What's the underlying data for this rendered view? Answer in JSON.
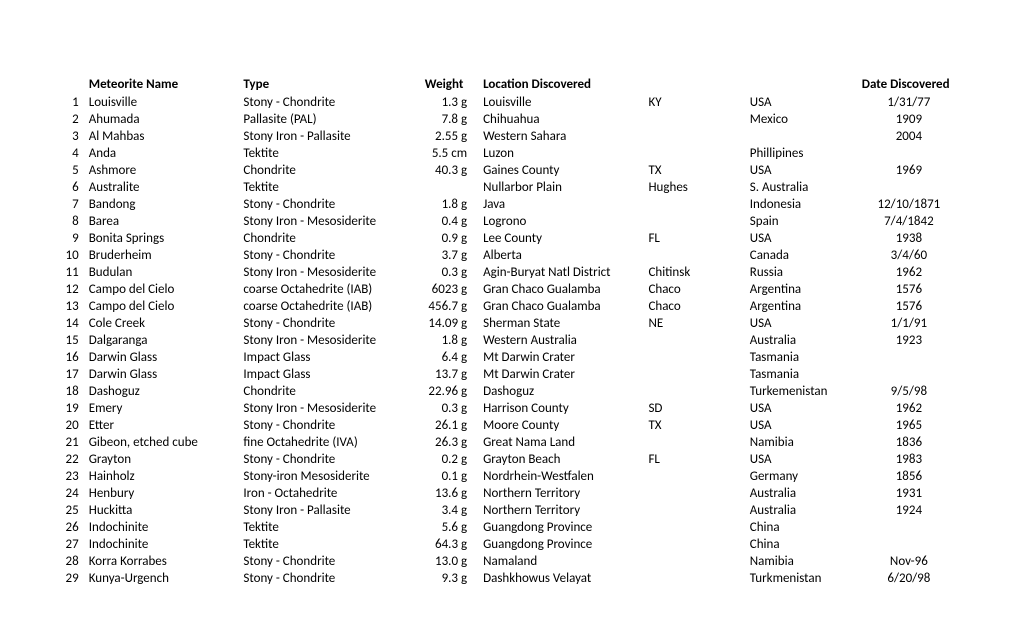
{
  "headers": {
    "name": "Meteorite Name",
    "type": "Type",
    "weight": "Weight",
    "location": "Location Discovered",
    "date": "Date Discovered"
  },
  "rows": [
    {
      "num": "1",
      "name": "Louisville",
      "type": "Stony - Chondrite",
      "weight": "1.3 g",
      "loc1": "Louisville",
      "loc2": "KY",
      "loc3": "USA",
      "date": "1/31/77"
    },
    {
      "num": "2",
      "name": "Ahumada",
      "type": "Pallasite (PAL)",
      "weight": "7.8 g",
      "loc1": "Chihuahua",
      "loc2": "",
      "loc3": "Mexico",
      "date": "1909"
    },
    {
      "num": "3",
      "name": "Al Mahbas",
      "type": "Stony Iron - Pallasite",
      "weight": "2.55 g",
      "loc1": "Western Sahara",
      "loc2": "",
      "loc3": "",
      "date": "2004"
    },
    {
      "num": "4",
      "name": "Anda",
      "type": "Tektite",
      "weight": "5.5 cm",
      "loc1": "Luzon",
      "loc2": "",
      "loc3": "Phillipines",
      "date": ""
    },
    {
      "num": "5",
      "name": "Ashmore",
      "type": "Chondrite",
      "weight": "40.3 g",
      "loc1": "Gaines County",
      "loc2": "TX",
      "loc3": "USA",
      "date": "1969"
    },
    {
      "num": "6",
      "name": "Australite",
      "type": "Tektite",
      "weight": "",
      "loc1": "Nullarbor Plain",
      "loc2": "Hughes",
      "loc3": "S. Australia",
      "date": ""
    },
    {
      "num": "7",
      "name": "Bandong",
      "type": "Stony - Chondrite",
      "weight": "1.8 g",
      "loc1": "Java",
      "loc2": "",
      "loc3": "Indonesia",
      "date": "12/10/1871"
    },
    {
      "num": "8",
      "name": "Barea",
      "type": "Stony Iron - Mesosiderite",
      "weight": "0.4 g",
      "loc1": "Logrono",
      "loc2": "",
      "loc3": "Spain",
      "date": "7/4/1842"
    },
    {
      "num": "9",
      "name": "Bonita Springs",
      "type": "Chondrite",
      "weight": "0.9 g",
      "loc1": "Lee County",
      "loc2": "FL",
      "loc3": "USA",
      "date": "1938"
    },
    {
      "num": "10",
      "name": "Bruderheim",
      "type": "Stony - Chondrite",
      "weight": "3.7 g",
      "loc1": "Alberta",
      "loc2": "",
      "loc3": "Canada",
      "date": "3/4/60"
    },
    {
      "num": "11",
      "name": "Budulan",
      "type": "Stony Iron - Mesosiderite",
      "weight": "0.3 g",
      "loc1": "Agin-Buryat Natl District",
      "loc2": "Chitinsk",
      "loc3": "Russia",
      "date": "1962"
    },
    {
      "num": "12",
      "name": "Campo del Cielo",
      "type": "coarse Octahedrite (IAB)",
      "weight": "6023 g",
      "loc1": "Gran Chaco Gualamba",
      "loc2": "Chaco",
      "loc3": "Argentina",
      "date": "1576"
    },
    {
      "num": "13",
      "name": "Campo del Cielo",
      "type": "coarse Octahedrite (IAB)",
      "weight": "456.7 g",
      "loc1": "Gran Chaco Gualamba",
      "loc2": "Chaco",
      "loc3": "Argentina",
      "date": "1576"
    },
    {
      "num": "14",
      "name": "Cole Creek",
      "type": "Stony - Chondrite",
      "weight": "14.09 g",
      "loc1": "Sherman State",
      "loc2": "NE",
      "loc3": "USA",
      "date": "1/1/91"
    },
    {
      "num": "15",
      "name": "Dalgaranga",
      "type": "Stony Iron - Mesosiderite",
      "weight": "1.8 g",
      "loc1": "Western Australia",
      "loc2": "",
      "loc3": "Australia",
      "date": "1923"
    },
    {
      "num": "16",
      "name": "Darwin Glass",
      "type": "Impact Glass",
      "weight": "6.4 g",
      "loc1": "Mt Darwin Crater",
      "loc2": "",
      "loc3": "Tasmania",
      "date": ""
    },
    {
      "num": "17",
      "name": "Darwin Glass",
      "type": "Impact Glass",
      "weight": "13.7 g",
      "loc1": "Mt Darwin Crater",
      "loc2": "",
      "loc3": "Tasmania",
      "date": ""
    },
    {
      "num": "18",
      "name": "Dashoguz",
      "type": "Chondrite",
      "weight": "22.96 g",
      "loc1": "Dashoguz",
      "loc2": "",
      "loc3": "Turkemenistan",
      "date": "9/5/98"
    },
    {
      "num": "19",
      "name": "Emery",
      "type": "Stony Iron - Mesosiderite",
      "weight": "0.3 g",
      "loc1": "Harrison County",
      "loc2": "SD",
      "loc3": "USA",
      "date": "1962"
    },
    {
      "num": "20",
      "name": "Etter",
      "type": "Stony - Chondrite",
      "weight": "26.1 g",
      "loc1": "Moore County",
      "loc2": "TX",
      "loc3": "USA",
      "date": "1965"
    },
    {
      "num": "21",
      "name": "Gibeon, etched cube",
      "type": "fine Octahedrite (IVA)",
      "weight": "26.3 g",
      "loc1": "Great Nama Land",
      "loc2": "",
      "loc3": "Namibia",
      "date": "1836"
    },
    {
      "num": "22",
      "name": "Grayton",
      "type": "Stony - Chondrite",
      "weight": "0.2 g",
      "loc1": "Grayton Beach",
      "loc2": "FL",
      "loc3": "USA",
      "date": "1983"
    },
    {
      "num": "23",
      "name": "Hainholz",
      "type": "Stony-iron Mesosiderite",
      "weight": "0.1 g",
      "loc1": "Nordrhein-Westfalen",
      "loc2": "",
      "loc3": "Germany",
      "date": "1856"
    },
    {
      "num": "24",
      "name": "Henbury",
      "type": "Iron - Octahedrite",
      "weight": "13.6 g",
      "loc1": "Northern Territory",
      "loc2": "",
      "loc3": "Australia",
      "date": "1931"
    },
    {
      "num": "25",
      "name": "Huckitta",
      "type": "Stony Iron - Pallasite",
      "weight": "3.4 g",
      "loc1": "Northern Territory",
      "loc2": "",
      "loc3": "Australia",
      "date": "1924"
    },
    {
      "num": "26",
      "name": "Indochinite",
      "type": "Tektite",
      "weight": "5.6 g",
      "loc1": "Guangdong Province",
      "loc2": "",
      "loc3": "China",
      "date": ""
    },
    {
      "num": "27",
      "name": "Indochinite",
      "type": "Tektite",
      "weight": "64.3 g",
      "loc1": "Guangdong Province",
      "loc2": "",
      "loc3": "China",
      "date": ""
    },
    {
      "num": "28",
      "name": "Korra Korrabes",
      "type": "Stony - Chondrite",
      "weight": "13.0 g",
      "loc1": "Namaland",
      "loc2": "",
      "loc3": "Namibia",
      "date": "Nov-96"
    },
    {
      "num": "29",
      "name": "Kunya-Urgench",
      "type": "Stony - Chondrite",
      "weight": "9.3 g",
      "loc1": "Dashkhowus Velayat",
      "loc2": "",
      "loc3": "Turkmenistan",
      "date": "6/20/98"
    }
  ]
}
